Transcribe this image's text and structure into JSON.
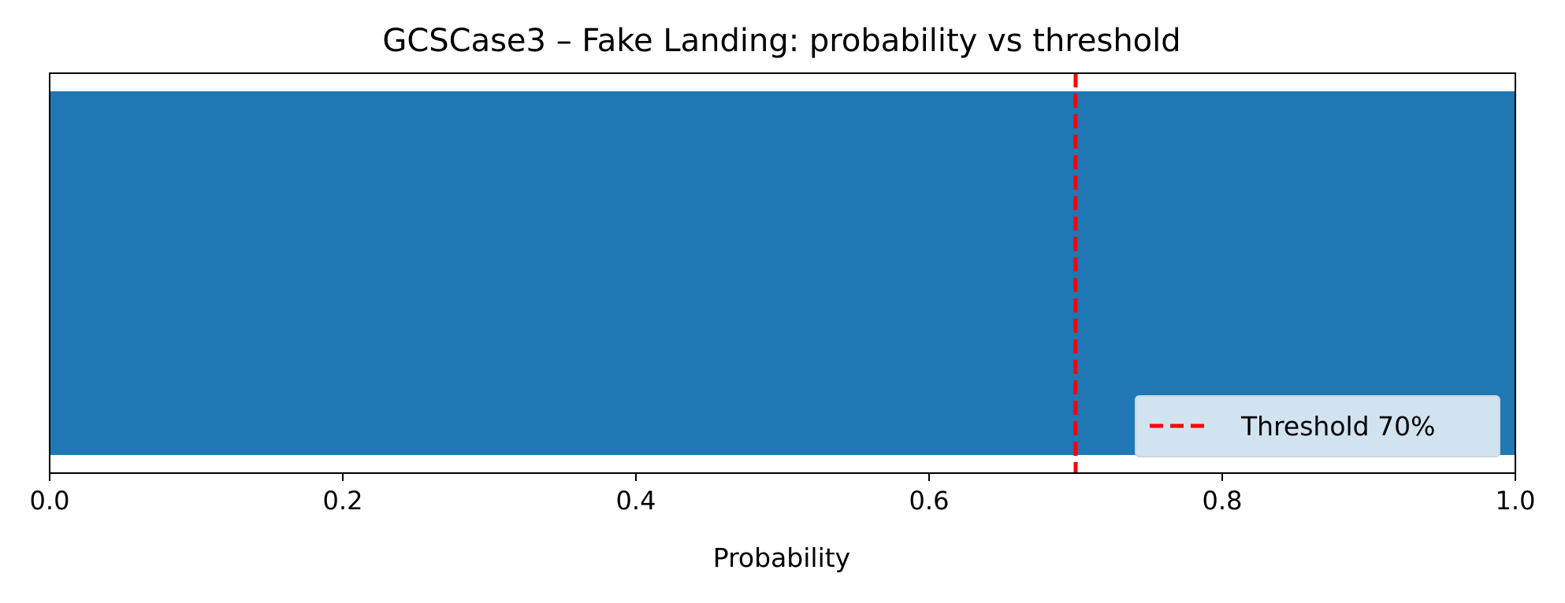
{
  "chart_data": {
    "type": "bar",
    "orientation": "horizontal",
    "title": "GCSCase3 – Fake Landing: probability vs threshold",
    "xlabel": "Probability",
    "ylabel": "",
    "xlim": [
      0.0,
      1.0
    ],
    "xticks": [
      "0.0",
      "0.2",
      "0.4",
      "0.6",
      "0.8",
      "1.0"
    ],
    "categories": [
      ""
    ],
    "values": [
      1.0
    ],
    "bar_color": "#1f77b4",
    "threshold": {
      "value": 0.7,
      "label": "Threshold 70%",
      "color": "#ff0000",
      "style": "dashed"
    },
    "legend_position": "lower-right",
    "grid": false
  }
}
